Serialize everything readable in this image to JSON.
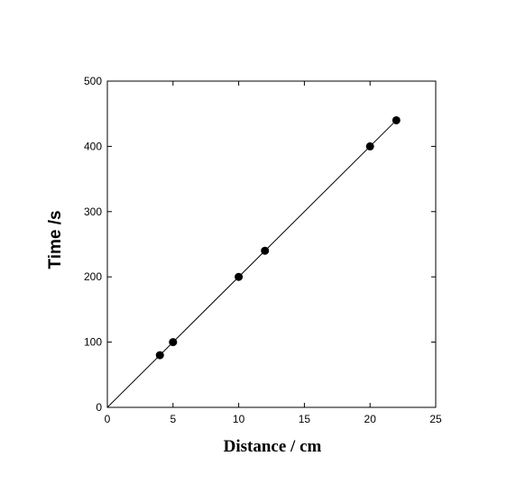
{
  "chart_data": {
    "type": "scatter",
    "title": "",
    "xlabel": "Distance / cm",
    "ylabel": "Time /s",
    "xlim": [
      0,
      25
    ],
    "ylim": [
      0,
      500
    ],
    "xticks": [
      0,
      5,
      10,
      15,
      20,
      25
    ],
    "yticks": [
      0,
      100,
      200,
      300,
      400,
      500
    ],
    "grid": false,
    "series": [
      {
        "x": [
          4,
          5,
          10,
          12,
          20,
          22
        ],
        "y": [
          80,
          100,
          200,
          240,
          400,
          440
        ]
      }
    ],
    "fit_line": {
      "slope": 20,
      "intercept": 0,
      "x_range": [
        0,
        22
      ]
    },
    "colors": {
      "marker": "#000000",
      "line": "#000000",
      "frame": "#000000"
    }
  }
}
